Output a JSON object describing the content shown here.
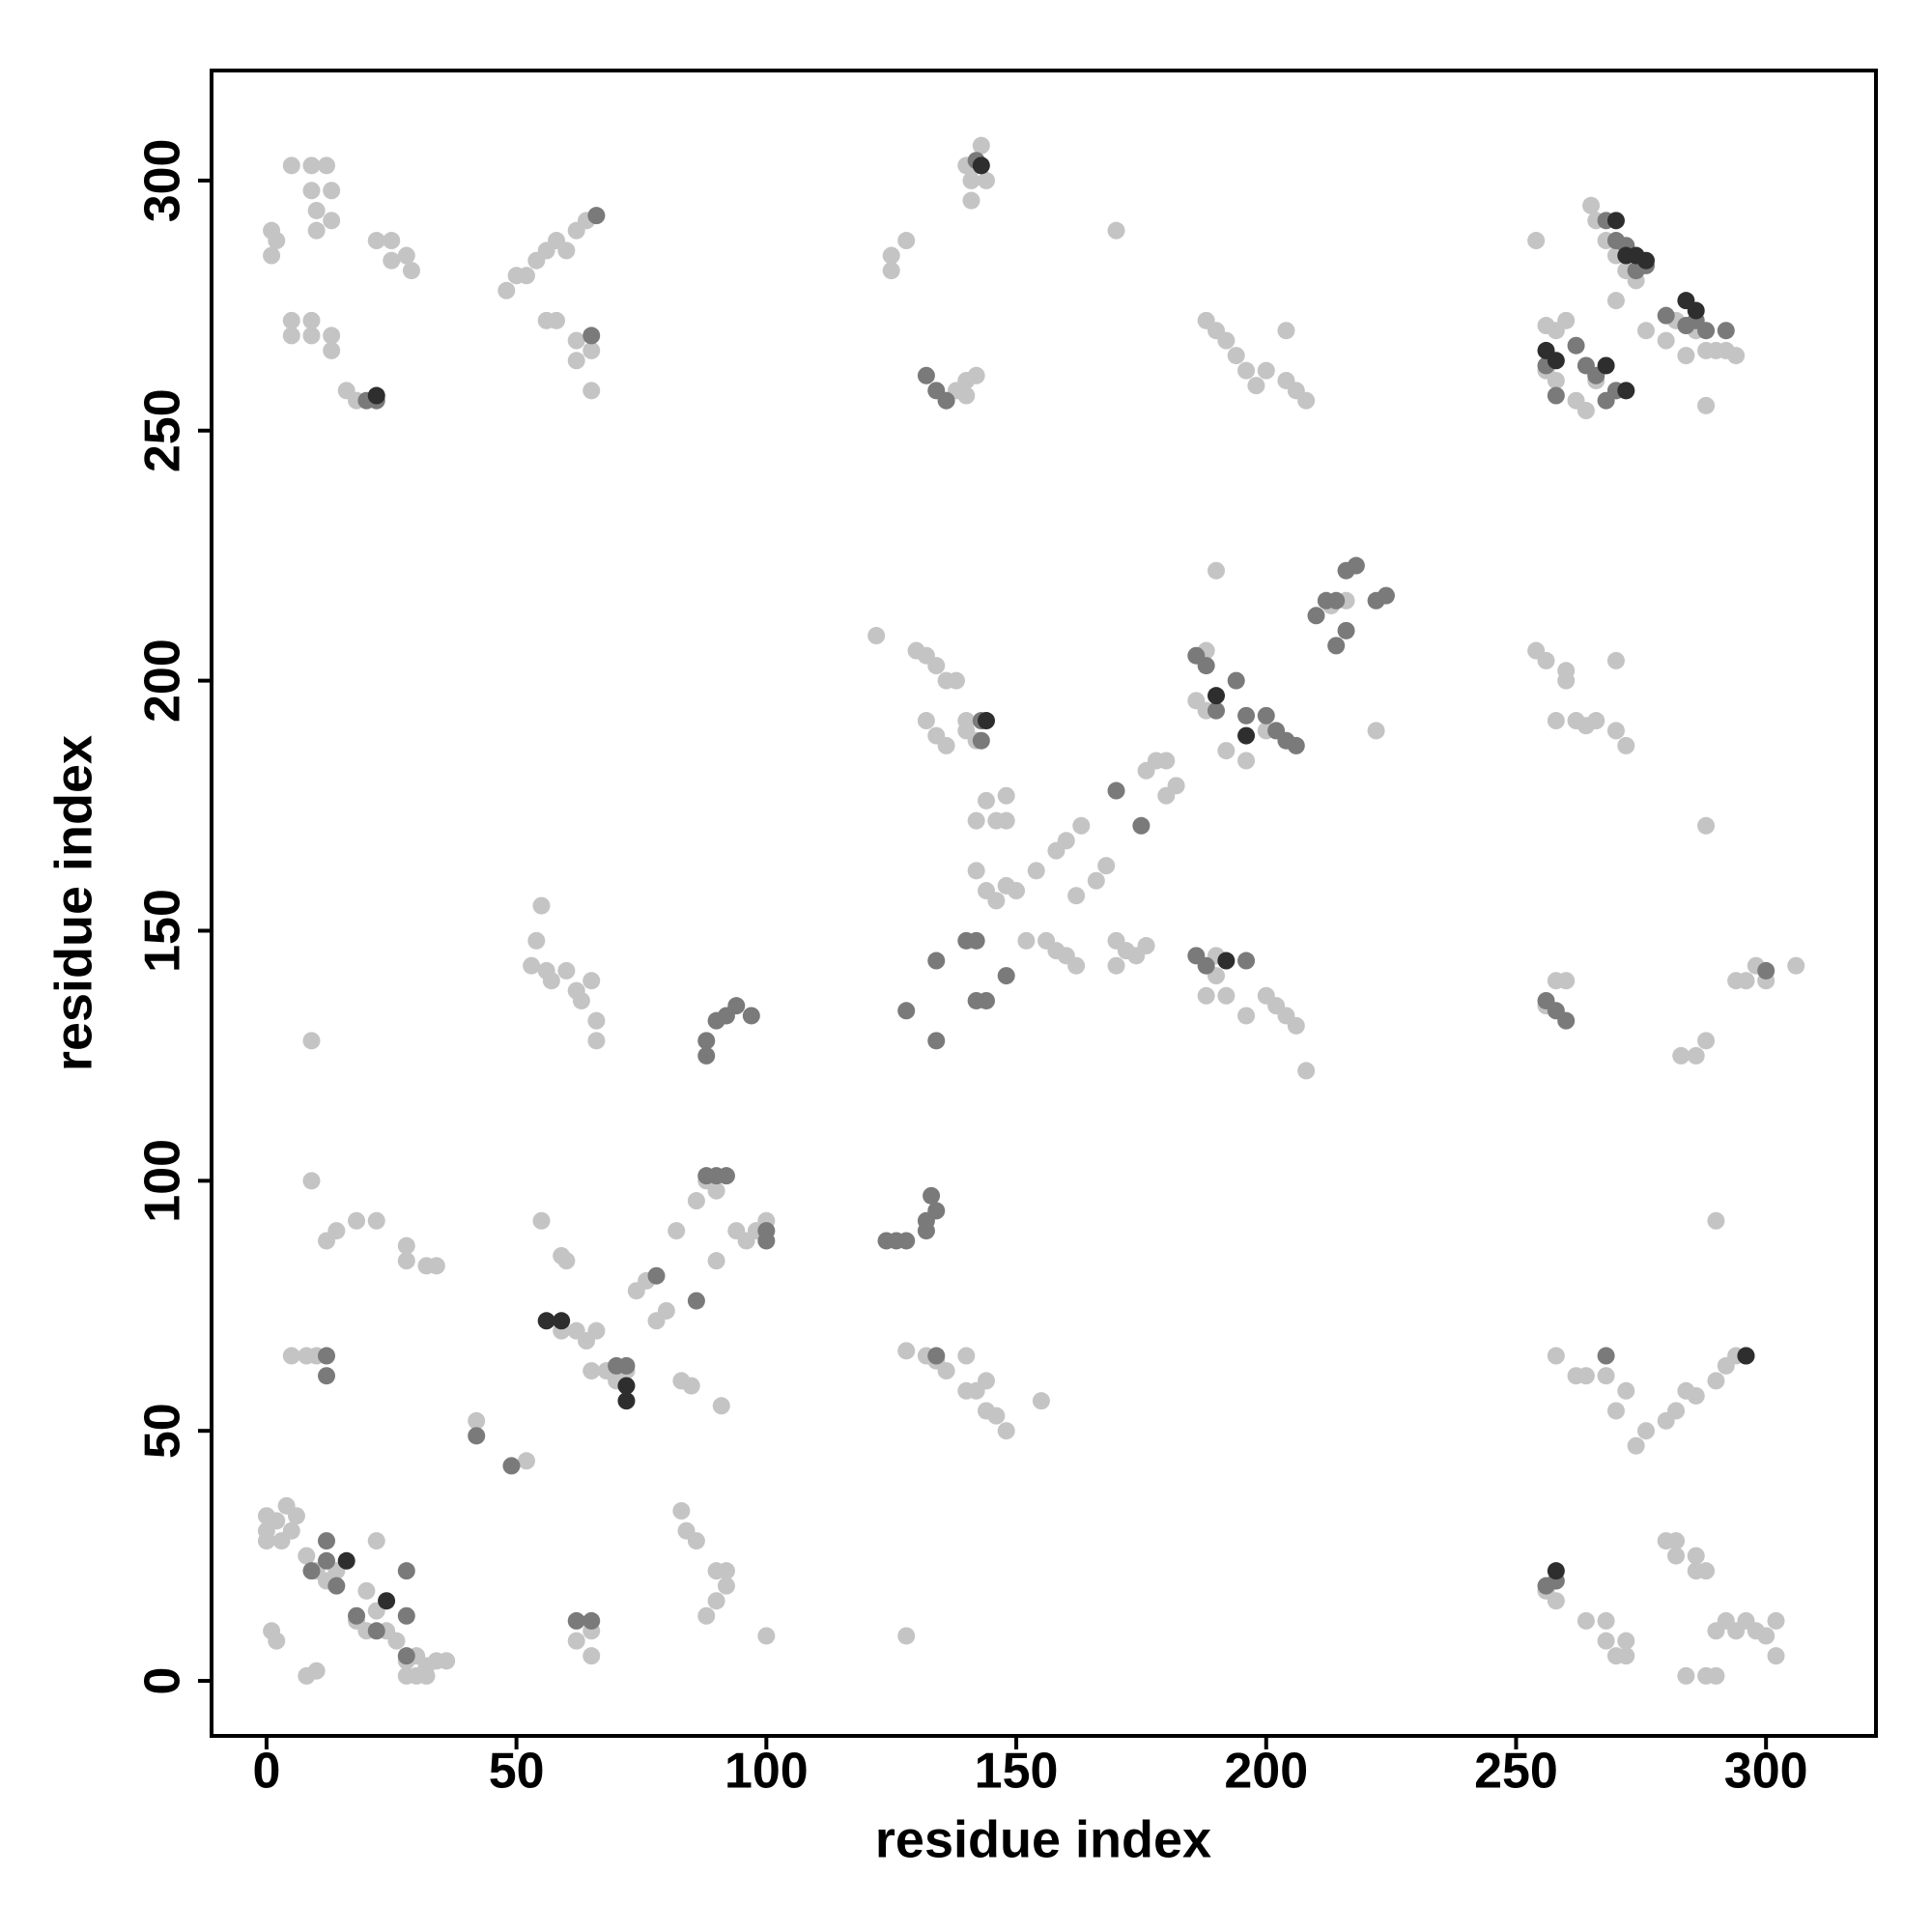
{
  "chart_data": {
    "type": "scatter",
    "x_label": "residue index",
    "y_label": "residue index",
    "xlim": [
      -11,
      322
    ],
    "ylim": [
      -11,
      322
    ],
    "xticks": [
      0,
      50,
      100,
      150,
      200,
      250,
      300
    ],
    "yticks": [
      0,
      50,
      100,
      150,
      200,
      250,
      300
    ],
    "grid": false,
    "series": [
      {
        "color": "#c4c4c4",
        "x": [
          0,
          0,
          2,
          4,
          5,
          6,
          1,
          2,
          0,
          3,
          8,
          10,
          12,
          14,
          18,
          20,
          22,
          24,
          26,
          28,
          28,
          30,
          32,
          34,
          36,
          30,
          32,
          8,
          10,
          20,
          22,
          5,
          8,
          10,
          9,
          12,
          14,
          18,
          22,
          28,
          28,
          32,
          34,
          9,
          1,
          1,
          2,
          5,
          9,
          9,
          10,
          10,
          13,
          13,
          12,
          5,
          5,
          9,
          9,
          13,
          13,
          22,
          25,
          25,
          28,
          29,
          16,
          18,
          48,
          50,
          52,
          54,
          56,
          58,
          60,
          62,
          64,
          56,
          58,
          62,
          62,
          65,
          65,
          54,
          55,
          53,
          56,
          57,
          60,
          62,
          63,
          66,
          66,
          65,
          55,
          59,
          60,
          59,
          62,
          64,
          66,
          65,
          68,
          70,
          72,
          74,
          76,
          78,
          80,
          82,
          86,
          88,
          90,
          94,
          96,
          98,
          100,
          90,
          42,
          52,
          83,
          85,
          83,
          84,
          86,
          88,
          90,
          90,
          92,
          92,
          91,
          100,
          62,
          65,
          65,
          122,
          125,
          125,
          128,
          130,
          132,
          134,
          136,
          138,
          132,
          134,
          136,
          140,
          142,
          140,
          142,
          144,
          146,
          148,
          148,
          142,
          144,
          146,
          148,
          150,
          152,
          156,
          158,
          160,
          162,
          154,
          158,
          160,
          162,
          163,
          166,
          168,
          170,
          172,
          174,
          176,
          170,
          178,
          180,
          176,
          182,
          180,
          186,
          188,
          190,
          188,
          192,
          196,
          200,
          204,
          190,
          190,
          192,
          188,
          196,
          200,
          202,
          204,
          206,
          208,
          222,
          213,
          216,
          142,
          141,
          141,
          144,
          140,
          143,
          136,
          138,
          140,
          142,
          140,
          170,
          188,
          190,
          192,
          194,
          196,
          198,
          200,
          204,
          204,
          206,
          208,
          128,
          132,
          134,
          136,
          140,
          142,
          144,
          144,
          146,
          148,
          155,
          140,
          128,
          254,
          256,
          258,
          260,
          256,
          258,
          262,
          264,
          266,
          270,
          272,
          265,
          266,
          268,
          270,
          272,
          274,
          270,
          276,
          280,
          282,
          284,
          286,
          288,
          290,
          292,
          294,
          288,
          254,
          256,
          260,
          260,
          262,
          258,
          264,
          266,
          270,
          272,
          270,
          258,
          260,
          256,
          288,
          288,
          283,
          286,
          294,
          298,
          296,
          300,
          306,
          258,
          262,
          264,
          268,
          270,
          272,
          274,
          276,
          280,
          282,
          284,
          286,
          290,
          292,
          294,
          280,
          282,
          282,
          286,
          288,
          286,
          288,
          284,
          290,
          290,
          292,
          294,
          296,
          298,
          300,
          302,
          302,
          264,
          268,
          268,
          270,
          272,
          272,
          258,
          256,
          290
        ],
        "y": [
          30,
          33,
          32,
          35,
          30,
          33,
          10,
          8,
          28,
          28,
          25,
          22,
          20,
          22,
          12,
          10,
          14,
          10,
          8,
          4,
          1,
          5,
          3,
          4,
          4,
          1,
          1,
          1,
          2,
          18,
          28,
          65,
          65,
          65,
          100,
          88,
          90,
          92,
          92,
          87,
          84,
          83,
          83,
          128,
          290,
          285,
          288,
          303,
          303,
          298,
          294,
          290,
          298,
          292,
          303,
          272,
          269,
          272,
          269,
          269,
          266,
          288,
          288,
          284,
          285,
          282,
          258,
          256,
          278,
          281,
          281,
          284,
          286,
          288,
          286,
          290,
          292,
          272,
          272,
          268,
          264,
          266,
          258,
          148,
          155,
          143,
          142,
          140,
          142,
          138,
          136,
          132,
          128,
          140,
          92,
          85,
          84,
          70,
          70,
          68,
          70,
          62,
          62,
          60,
          62,
          78,
          80,
          72,
          74,
          90,
          96,
          100,
          98,
          90,
          88,
          90,
          92,
          84,
          52,
          44,
          60,
          59,
          34,
          30,
          28,
          13,
          16,
          22,
          22,
          19,
          55,
          9,
          8,
          5,
          10,
          209,
          285,
          282,
          288,
          206,
          205,
          203,
          200,
          200,
          192,
          189,
          187,
          190,
          188,
          192,
          172,
          176,
          172,
          177,
          172,
          162,
          158,
          156,
          159,
          158,
          148,
          148,
          146,
          145,
          143,
          162,
          166,
          168,
          157,
          171,
          160,
          163,
          148,
          146,
          145,
          147,
          143,
          184,
          184,
          182,
          179,
          177,
          196,
          206,
          222,
          194,
          186,
          184,
          190,
          188,
          145,
          141,
          137,
          137,
          133,
          137,
          135,
          133,
          131,
          122,
          190,
          215,
          216,
          303,
          300,
          296,
          300,
          303,
          307,
          256,
          258,
          260,
          261,
          257,
          290,
          272,
          270,
          268,
          265,
          262,
          259,
          262,
          260,
          270,
          258,
          256,
          66,
          65,
          64,
          62,
          58,
          58,
          60,
          54,
          53,
          50,
          56,
          65,
          9,
          288,
          271,
          270,
          272,
          262,
          260,
          256,
          254,
          260,
          258,
          258,
          295,
          292,
          288,
          285,
          282,
          280,
          276,
          270,
          268,
          272,
          265,
          270,
          266,
          266,
          266,
          265,
          255,
          206,
          204,
          202,
          200,
          192,
          192,
          191,
          192,
          190,
          187,
          204,
          140,
          140,
          135,
          171,
          128,
          125,
          125,
          140,
          143,
          140,
          140,
          143,
          65,
          61,
          61,
          61,
          54,
          58,
          47,
          50,
          52,
          54,
          58,
          57,
          60,
          63,
          65,
          28,
          28,
          25,
          25,
          22,
          22,
          1,
          1,
          1,
          10,
          12,
          10,
          12,
          10,
          9,
          12,
          5,
          12,
          12,
          8,
          5,
          8,
          5,
          16,
          18,
          92
        ]
      },
      {
        "color": "#7a7a7a",
        "x": [
          9,
          12,
          12,
          14,
          12,
          12,
          18,
          22,
          28,
          28,
          28,
          20,
          22,
          65,
          66,
          62,
          65,
          42,
          49,
          88,
          88,
          90,
          92,
          94,
          97,
          88,
          90,
          92,
          100,
          100,
          86,
          78,
          70,
          72,
          124,
          126,
          128,
          132,
          132,
          134,
          133,
          128,
          134,
          134,
          142,
          144,
          140,
          142,
          148,
          170,
          175,
          186,
          188,
          190,
          194,
          196,
          200,
          202,
          204,
          206,
          210,
          212,
          214,
          214,
          216,
          216,
          218,
          222,
          224,
          143,
          143,
          132,
          134,
          136,
          142,
          186,
          188,
          196,
          256,
          258,
          262,
          264,
          266,
          268,
          270,
          268,
          270,
          272,
          274,
          276,
          280,
          284,
          286,
          288,
          292,
          256,
          258,
          260,
          134,
          268,
          296,
          258,
          256,
          300
        ],
        "y": [
          22,
          24,
          28,
          19,
          65,
          61,
          13,
          10,
          22,
          13,
          5,
          256,
          256,
          269,
          293,
          12,
          12,
          49,
          43,
          125,
          128,
          132,
          133,
          135,
          133,
          101,
          101,
          101,
          90,
          88,
          76,
          81,
          63,
          63,
          88,
          88,
          88,
          90,
          92,
          94,
          97,
          134,
          128,
          144,
          136,
          136,
          148,
          148,
          141,
          178,
          171,
          205,
          203,
          194,
          200,
          193,
          193,
          190,
          188,
          187,
          213,
          216,
          216,
          207,
          210,
          222,
          223,
          216,
          217,
          192,
          188,
          261,
          258,
          256,
          304,
          145,
          143,
          144,
          263,
          257,
          267,
          263,
          261,
          256,
          258,
          292,
          288,
          287,
          282,
          283,
          273,
          271,
          272,
          270,
          270,
          136,
          134,
          132,
          65,
          65,
          65,
          20,
          19,
          142
        ]
      },
      {
        "color": "#2e2e2e",
        "x": [
          16,
          24,
          56,
          59,
          72,
          72,
          22,
          143,
          144,
          190,
          196,
          192,
          272,
          274,
          276,
          284,
          286,
          268,
          272,
          258,
          256,
          258,
          270,
          296
        ],
        "y": [
          24,
          16,
          72,
          72,
          59,
          56,
          257,
          303,
          192,
          197,
          189,
          144,
          285,
          285,
          284,
          276,
          274,
          263,
          258,
          264,
          266,
          22,
          292,
          65
        ]
      }
    ]
  }
}
